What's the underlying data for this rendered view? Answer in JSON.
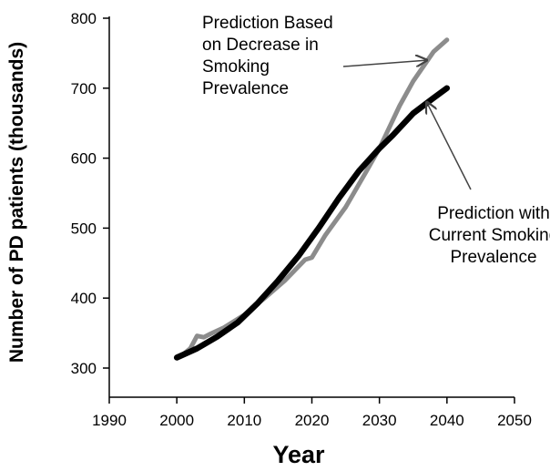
{
  "chart_data": {
    "type": "line",
    "title": "",
    "xlabel": "Year",
    "ylabel": "Number of PD patients (thousands)",
    "xlim": [
      1990,
      2050
    ],
    "ylim": [
      300,
      800
    ],
    "x_ticks": [
      "1990",
      "2000",
      "2010",
      "2020",
      "2030",
      "2040",
      "2050"
    ],
    "y_ticks": [
      "300",
      "400",
      "500",
      "600",
      "700",
      "800"
    ],
    "grid": false,
    "legend": "none",
    "series": [
      {
        "color": "#8c8c8c",
        "x": [
          2000,
          2001,
          2002,
          2003,
          2004,
          2005,
          2007,
          2010,
          2013,
          2016,
          2019,
          2020,
          2022,
          2025,
          2028,
          2030,
          2033,
          2035,
          2038,
          2040
        ],
        "y": [
          316,
          320,
          328,
          346,
          344,
          349,
          358,
          376,
          400,
          425,
          455,
          458,
          490,
          530,
          580,
          614,
          675,
          710,
          752,
          769
        ]
      },
      {
        "color": "#000000",
        "x": [
          2000,
          2003,
          2006,
          2009,
          2012,
          2015,
          2018,
          2021,
          2024,
          2027,
          2030,
          2032,
          2035,
          2038,
          2040
        ],
        "y": [
          315,
          328,
          345,
          365,
          393,
          425,
          460,
          500,
          543,
          582,
          614,
          633,
          664,
          686,
          700
        ]
      }
    ],
    "annotations": [
      {
        "lines": [
          "Prediction Based",
          "on Decrease in",
          "Smoking",
          "Prevalence"
        ],
        "target": [
          2037,
          740
        ]
      },
      {
        "lines": [
          "Prediction with",
          "Current  Smoking",
          "Prevalence"
        ],
        "target": [
          2037,
          680
        ]
      }
    ]
  }
}
